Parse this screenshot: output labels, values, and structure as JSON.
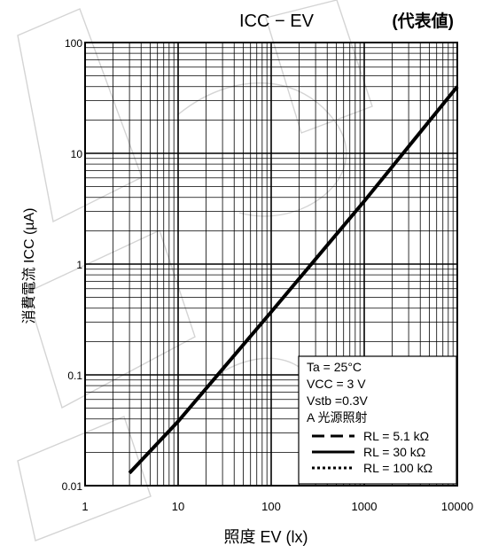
{
  "chart_data": {
    "type": "line",
    "title": "ICC − EV",
    "title_note": "(代表値)",
    "xlabel": "照度 EV (lx)",
    "ylabel": "消費電流 ICC (µA)",
    "x_scale": "log",
    "y_scale": "log",
    "xlim": [
      1,
      10000
    ],
    "ylim": [
      0.01,
      100
    ],
    "x_ticks": [
      "1",
      "10",
      "100",
      "1000",
      "10000"
    ],
    "y_ticks": [
      "0.01",
      "0.1",
      "1",
      "10",
      "100"
    ],
    "grid": true,
    "legend_position": "bottom-right",
    "conditions": [
      "Ta = 25°C",
      "VCC = 3 V",
      "Vstb =0.3V",
      "A 光源照射"
    ],
    "legend": [
      {
        "label": "RL = 5.1 kΩ",
        "style": "dashed"
      },
      {
        "label": "RL = 30 kΩ",
        "style": "solid"
      },
      {
        "label": "RL = 100 kΩ",
        "style": "dotted"
      }
    ],
    "series": [
      {
        "name": "RL = 30 kΩ",
        "x": [
          3,
          10,
          100,
          1000,
          10000
        ],
        "y": [
          0.013,
          0.038,
          0.37,
          3.7,
          40
        ]
      }
    ]
  }
}
